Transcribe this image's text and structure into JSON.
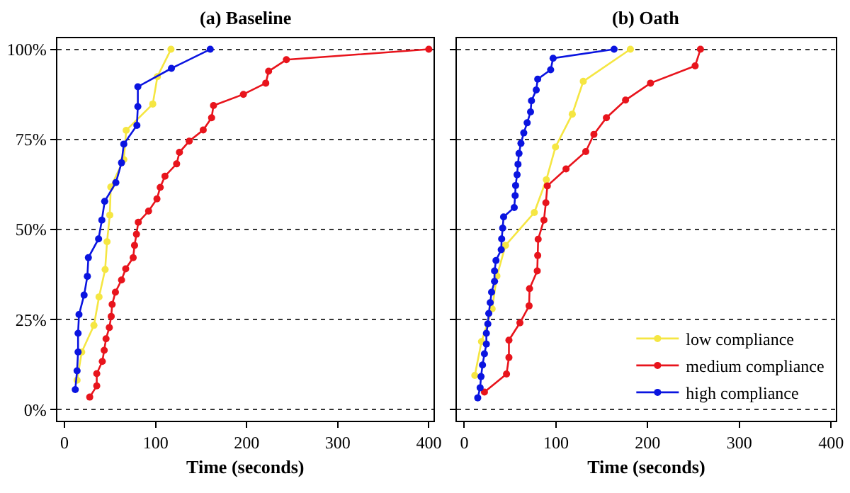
{
  "chart_data": [
    {
      "type": "line",
      "title": "(a) Baseline",
      "xlabel": "Time (seconds)",
      "xlim": [
        -8,
        405
      ],
      "xticks": [
        0,
        100,
        200,
        300,
        400
      ],
      "ylim": [
        -3,
        103
      ],
      "yticks": [
        {
          "value": 0,
          "label": "0%"
        },
        {
          "value": 25,
          "label": "25%"
        },
        {
          "value": 50,
          "label": "50%"
        },
        {
          "value": 75,
          "label": "75%"
        },
        {
          "value": 100,
          "label": "100%"
        }
      ],
      "grid": "y",
      "legend": false,
      "marker": "circle",
      "line_style": "solid",
      "series": [
        {
          "color": "#f5e642",
          "x": [
            13.8,
            18.9,
            32.3,
            37.9,
            44.6,
            46.7,
            49.7,
            50.8,
            65.1,
            67.7,
            96.9,
            102,
            116.9
          ],
          "values": [
            8.2,
            16,
            23.4,
            31.3,
            38.9,
            46.6,
            54,
            61.8,
            69.4,
            77.5,
            84.8,
            92.4,
            100
          ]
        },
        {
          "color": "#e8141c",
          "x": [
            27.7,
            35.4,
            35.4,
            41.5,
            43.6,
            45.6,
            49.2,
            51.3,
            52.3,
            55.9,
            62.6,
            67.2,
            75.4,
            76.9,
            79,
            81,
            92.3,
            101.5,
            105.1,
            110.3,
            123.1,
            126.2,
            136.9,
            152.3,
            161.5,
            163.6,
            196.4,
            221,
            224.1,
            243.6,
            400
          ],
          "values": [
            3.5,
            6.6,
            10,
            13.4,
            16.5,
            19.7,
            22.8,
            25.9,
            29.2,
            32.6,
            36,
            39.1,
            42.2,
            45.6,
            48.7,
            52,
            55.1,
            58.5,
            61.7,
            64.8,
            68.2,
            71.4,
            74.5,
            77.6,
            81,
            84.4,
            87.5,
            90.6,
            93.9,
            97.1,
            100
          ]
        },
        {
          "color": "#0a14e0",
          "x": [
            11.8,
            13.8,
            14.9,
            14.9,
            15.9,
            21.5,
            25.1,
            26.2,
            37.4,
            41,
            44.1,
            56.4,
            62.6,
            65.1,
            79.5,
            80.5,
            80.5,
            117.4,
            160
          ],
          "values": [
            5.6,
            10.8,
            16,
            21.2,
            26.4,
            31.8,
            37,
            42.2,
            47.4,
            52.6,
            57.8,
            63,
            68.5,
            73.7,
            78.9,
            84.1,
            89.6,
            94.7,
            100
          ]
        }
      ]
    },
    {
      "type": "line",
      "title": "(b) Oath",
      "xlabel": "Time (seconds)",
      "xlim": [
        -8,
        405
      ],
      "xticks": [
        0,
        100,
        200,
        300,
        400
      ],
      "ylim": [
        -3,
        103
      ],
      "yticks": [
        {
          "value": 0,
          "label": null
        },
        {
          "value": 25,
          "label": null
        },
        {
          "value": 50,
          "label": null
        },
        {
          "value": 75,
          "label": null
        },
        {
          "value": 100,
          "label": null
        }
      ],
      "tick_labels": "x",
      "grid": "y",
      "legend": "bottom right",
      "marker": "circle",
      "line_style": "solid",
      "series": [
        {
          "name": "low compliance",
          "color": "#f5e642",
          "x": [
            11.5,
            18.8,
            30.4,
            35.6,
            45,
            76.4,
            89.5,
            99.5,
            117.8,
            129.8,
            181.2
          ],
          "values": [
            9.5,
            18.9,
            28,
            37.1,
            45.6,
            54.7,
            63.8,
            72.9,
            82,
            91.1,
            100
          ]
        },
        {
          "name": "medium compliance",
          "color": "#e8141c",
          "x": [
            22,
            46.1,
            48.7,
            48.7,
            60.7,
            70.7,
            71.2,
            79.6,
            80.1,
            80.6,
            86.9,
            89,
            90.6,
            111,
            132.5,
            141.4,
            155,
            175.9,
            203.1,
            251.8,
            257.6
          ],
          "values": [
            4.9,
            9.9,
            14.5,
            19.3,
            24.1,
            28.8,
            33.6,
            38.5,
            42.8,
            47.3,
            52.6,
            57.4,
            62.1,
            66.8,
            71.6,
            76.4,
            81,
            85.9,
            90.6,
            95.4,
            100
          ]
        },
        {
          "name": "high compliance",
          "color": "#0a14e0",
          "x": [
            14.7,
            17.3,
            18.3,
            19.9,
            22,
            24.1,
            24.1,
            25.7,
            26.7,
            28.3,
            29.8,
            33,
            33,
            34.6,
            40.3,
            40.8,
            41.9,
            42.9,
            54.5,
            55.5,
            56,
            57.6,
            58.6,
            59.7,
            61.8,
            64.9,
            68.6,
            72.3,
            73.3,
            78.5,
            80.1,
            94.2,
            96.9,
            163.4
          ],
          "values": [
            3.3,
            6.1,
            9.2,
            12.4,
            15.5,
            18.2,
            21.2,
            23.8,
            26.7,
            29.7,
            32.6,
            35.6,
            38.5,
            41.4,
            44.4,
            47.4,
            50.4,
            53.5,
            56.1,
            59.4,
            62.2,
            65.2,
            68.1,
            71.1,
            73.9,
            76.8,
            79.6,
            82.6,
            85.7,
            88.7,
            91.7,
            94.3,
            97.5,
            100
          ]
        }
      ]
    }
  ]
}
